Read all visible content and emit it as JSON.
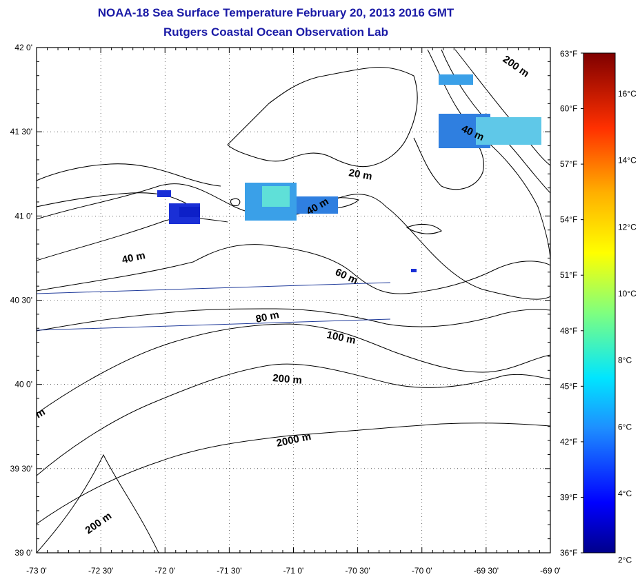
{
  "title": "NOAA-18 Sea Surface Temperature February 20, 2013 2016 GMT",
  "subtitle": "Rutgers Coastal Ocean Observation Lab",
  "lat_ticks": [
    "42 0'",
    "41 30'",
    "41 0'",
    "40 30'",
    "40 0'",
    "39 30'",
    "39 0'"
  ],
  "lon_ticks": [
    "-73 0'",
    "-72 30'",
    "-72 0'",
    "-71 30'",
    "-71 0'",
    "-70 30'",
    "-70 0'",
    "-69 30'",
    "-69 0'"
  ],
  "fahrenheit_ticks": [
    "63°F",
    "60°F",
    "57°F",
    "54°F",
    "51°F",
    "48°F",
    "45°F",
    "42°F",
    "39°F",
    "36°F"
  ],
  "celsius_ticks": [
    "16°C",
    "14°C",
    "12°C",
    "10°C",
    "8°C",
    "6°C",
    "4°C",
    "2°C"
  ],
  "contour_labels": [
    "200 m",
    "40 m",
    "20 m",
    "40 m",
    "40 m",
    "60 m",
    "80 m",
    "100 m",
    "200 m",
    "2000 m",
    "200 m",
    "m"
  ],
  "colors": {
    "title": "#1a1aa6",
    "coast": "#000000",
    "track": "#1f3a9a",
    "sst_cold": "#1a2fd6",
    "sst_mid": "#3aa0e8",
    "sst_warm": "#5fe0d8"
  }
}
